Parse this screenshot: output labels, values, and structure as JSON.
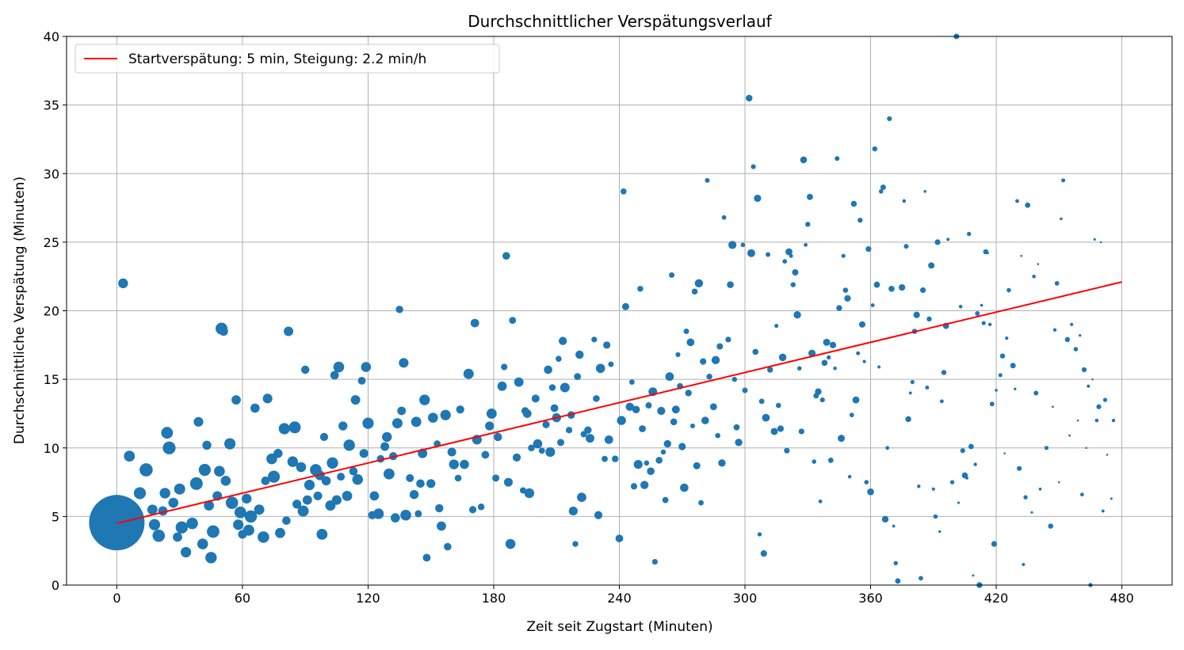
{
  "chart_data": {
    "type": "scatter",
    "title": "Durchschnittlicher Verspätungsverlauf",
    "xlabel": "Zeit seit Zugstart (Minuten)",
    "ylabel": "Durchschnittliche Verspätung (Minuten)",
    "xlim": [
      -24,
      504
    ],
    "ylim": [
      0,
      40
    ],
    "xticks": [
      0,
      60,
      120,
      180,
      240,
      300,
      360,
      420,
      480
    ],
    "yticks": [
      0,
      5,
      10,
      15,
      20,
      25,
      30,
      35,
      40
    ],
    "grid": true,
    "legend_position": "top-left",
    "colors": {
      "points": "#1f77b4",
      "fit_line": "#ff0000"
    },
    "fit_line": {
      "label": "Startverspätung: 5 min, Steigung: 2.2 min/h",
      "x": [
        0,
        480
      ],
      "y": [
        4.5,
        22.1
      ]
    },
    "large_point": {
      "x": 0,
      "y": 4.55
    },
    "points": [
      [
        3,
        22
      ],
      [
        6,
        9.4
      ],
      [
        11,
        6.7
      ],
      [
        14,
        8.4
      ],
      [
        17,
        5.5
      ],
      [
        18,
        4.4
      ],
      [
        20,
        3.6
      ],
      [
        22,
        5.4
      ],
      [
        23,
        6.7
      ],
      [
        24,
        11.1
      ],
      [
        25,
        10
      ],
      [
        27,
        6
      ],
      [
        30,
        7
      ],
      [
        31,
        4.2
      ],
      [
        29,
        3.5
      ],
      [
        33,
        2.4
      ],
      [
        36,
        4.5
      ],
      [
        38,
        7.4
      ],
      [
        39,
        11.9
      ],
      [
        41,
        3
      ],
      [
        42,
        8.4
      ],
      [
        43,
        10.2
      ],
      [
        44,
        5.8
      ],
      [
        45,
        2
      ],
      [
        46,
        3.9
      ],
      [
        48,
        6.5
      ],
      [
        49,
        8.3
      ],
      [
        50,
        18.7
      ],
      [
        51,
        18.5
      ],
      [
        52,
        7.6
      ],
      [
        54,
        10.3
      ],
      [
        55,
        6
      ],
      [
        57,
        13.5
      ],
      [
        58,
        4.4
      ],
      [
        59,
        5.3
      ],
      [
        60,
        3.7
      ],
      [
        62,
        6.3
      ],
      [
        63,
        4
      ],
      [
        64,
        5
      ],
      [
        66,
        12.9
      ],
      [
        68,
        5.5
      ],
      [
        70,
        3.5
      ],
      [
        71,
        7.6
      ],
      [
        72,
        13.6
      ],
      [
        74,
        9.2
      ],
      [
        75,
        7.9
      ],
      [
        77,
        9.6
      ],
      [
        78,
        3.8
      ],
      [
        80,
        11.4
      ],
      [
        81,
        4.7
      ],
      [
        82,
        18.5
      ],
      [
        84,
        9
      ],
      [
        85,
        11.5
      ],
      [
        86,
        5.9
      ],
      [
        88,
        8.6
      ],
      [
        89,
        5.4
      ],
      [
        90,
        15.7
      ],
      [
        91,
        6.2
      ],
      [
        92,
        7.3
      ],
      [
        95,
        8.4
      ],
      [
        96,
        6.5
      ],
      [
        97,
        8
      ],
      [
        98,
        3.7
      ],
      [
        99,
        10.8
      ],
      [
        100,
        7.6
      ],
      [
        102,
        5.8
      ],
      [
        103,
        8.9
      ],
      [
        104,
        15.3
      ],
      [
        105,
        6.2
      ],
      [
        106,
        15.9
      ],
      [
        107,
        7.9
      ],
      [
        108,
        11.6
      ],
      [
        110,
        6.5
      ],
      [
        111,
        10.2
      ],
      [
        113,
        8.3
      ],
      [
        114,
        13.5
      ],
      [
        115,
        7.7
      ],
      [
        117,
        14.9
      ],
      [
        118,
        9.6
      ],
      [
        119,
        15.9
      ],
      [
        120,
        11.8
      ],
      [
        122,
        5.1
      ],
      [
        123,
        6.5
      ],
      [
        125,
        5.2
      ],
      [
        126,
        9.2
      ],
      [
        128,
        10.1
      ],
      [
        129,
        10.8
      ],
      [
        130,
        8.1
      ],
      [
        132,
        9.4
      ],
      [
        133,
        4.9
      ],
      [
        134,
        11.8
      ],
      [
        135,
        20.1
      ],
      [
        136,
        12.7
      ],
      [
        137,
        16.2
      ],
      [
        138,
        5.1
      ],
      [
        140,
        7.8
      ],
      [
        142,
        6.6
      ],
      [
        143,
        11.9
      ],
      [
        144,
        5.2
      ],
      [
        145,
        7.4
      ],
      [
        146,
        9.6
      ],
      [
        147,
        13.5
      ],
      [
        148,
        2
      ],
      [
        150,
        7.4
      ],
      [
        151,
        12.2
      ],
      [
        153,
        10.3
      ],
      [
        154,
        5.6
      ],
      [
        155,
        4.3
      ],
      [
        157,
        12.4
      ],
      [
        158,
        2.8
      ],
      [
        160,
        9.7
      ],
      [
        161,
        8.8
      ],
      [
        163,
        7.8
      ],
      [
        164,
        12.8
      ],
      [
        166,
        8.8
      ],
      [
        168,
        15.4
      ],
      [
        170,
        5.5
      ],
      [
        171,
        19.1
      ],
      [
        172,
        10.6
      ],
      [
        174,
        5.7
      ],
      [
        176,
        9.5
      ],
      [
        178,
        11.6
      ],
      [
        179,
        12.5
      ],
      [
        181,
        7.8
      ],
      [
        182,
        10.8
      ],
      [
        184,
        14.5
      ],
      [
        185,
        15.9
      ],
      [
        186,
        24
      ],
      [
        187,
        7.5
      ],
      [
        188,
        3
      ],
      [
        189,
        19.3
      ],
      [
        191,
        9.3
      ],
      [
        192,
        14.8
      ],
      [
        194,
        6.9
      ],
      [
        195,
        12.7
      ],
      [
        196,
        12.5
      ],
      [
        197,
        6.7
      ],
      [
        198,
        10
      ],
      [
        200,
        13.6
      ],
      [
        201,
        10.3
      ],
      [
        203,
        9.8
      ],
      [
        205,
        11.7
      ],
      [
        206,
        15.7
      ],
      [
        207,
        9.7
      ],
      [
        208,
        14.4
      ],
      [
        209,
        12.9
      ],
      [
        210,
        12.2
      ],
      [
        211,
        16.5
      ],
      [
        212,
        10.4
      ],
      [
        213,
        17.8
      ],
      [
        214,
        14.4
      ],
      [
        216,
        11.3
      ],
      [
        217,
        12.4
      ],
      [
        218,
        5.4
      ],
      [
        219,
        3
      ],
      [
        220,
        15.2
      ],
      [
        221,
        16.8
      ],
      [
        222,
        6.4
      ],
      [
        223,
        11
      ],
      [
        225,
        11.3
      ],
      [
        226,
        10.7
      ],
      [
        228,
        17.9
      ],
      [
        229,
        13.6
      ],
      [
        230,
        5.1
      ],
      [
        231,
        15.8
      ],
      [
        233,
        9.2
      ],
      [
        234,
        17.5
      ],
      [
        235,
        10.6
      ],
      [
        236,
        16.1
      ],
      [
        238,
        9.2
      ],
      [
        240,
        3.4
      ],
      [
        241,
        12
      ],
      [
        242,
        28.7
      ],
      [
        243,
        20.3
      ],
      [
        245,
        13
      ],
      [
        246,
        14.8
      ],
      [
        247,
        7.2
      ],
      [
        248,
        12.8
      ],
      [
        249,
        8.8
      ],
      [
        250,
        21.6
      ],
      [
        251,
        11.4
      ],
      [
        252,
        7.3
      ],
      [
        253,
        8.9
      ],
      [
        254,
        13.1
      ],
      [
        255,
        8.3
      ],
      [
        256,
        14.1
      ],
      [
        257,
        1.7
      ],
      [
        259,
        9.1
      ],
      [
        260,
        12.7
      ],
      [
        261,
        9.7
      ],
      [
        262,
        6.2
      ],
      [
        263,
        10.3
      ],
      [
        264,
        15.2
      ],
      [
        265,
        22.6
      ],
      [
        266,
        11.9
      ],
      [
        267,
        12.8
      ],
      [
        268,
        16.8
      ],
      [
        269,
        14.5
      ],
      [
        270,
        10.1
      ],
      [
        271,
        7.1
      ],
      [
        272,
        18.5
      ],
      [
        273,
        14
      ],
      [
        274,
        17.7
      ],
      [
        275,
        11.6
      ],
      [
        276,
        21.4
      ],
      [
        277,
        8.7
      ],
      [
        278,
        22
      ],
      [
        279,
        6
      ],
      [
        280,
        16.3
      ],
      [
        281,
        12
      ],
      [
        282,
        29.5
      ],
      [
        283,
        15.2
      ],
      [
        285,
        13
      ],
      [
        286,
        16.4
      ],
      [
        287,
        10.9
      ],
      [
        288,
        17.4
      ],
      [
        289,
        8.9
      ],
      [
        290,
        26.8
      ],
      [
        292,
        17.9
      ],
      [
        293,
        21.9
      ],
      [
        294,
        24.8
      ],
      [
        295,
        15
      ],
      [
        296,
        11.5
      ],
      [
        297,
        10.4
      ],
      [
        299,
        24.8
      ],
      [
        300,
        14.2
      ],
      [
        302,
        35.5
      ],
      [
        303,
        24.2
      ],
      [
        304,
        30.5
      ],
      [
        305,
        17
      ],
      [
        306,
        28.2
      ],
      [
        307,
        3.7
      ],
      [
        308,
        13.4
      ],
      [
        309,
        2.3
      ],
      [
        310,
        12.2
      ],
      [
        311,
        24.1
      ],
      [
        312,
        15.7
      ],
      [
        314,
        11.2
      ],
      [
        315,
        18.9
      ],
      [
        316,
        13.1
      ],
      [
        317,
        11.4
      ],
      [
        318,
        16.6
      ],
      [
        319,
        23.6
      ],
      [
        320,
        9.8
      ],
      [
        321,
        24.3
      ],
      [
        322,
        24
      ],
      [
        323,
        21.9
      ],
      [
        324,
        22.8
      ],
      [
        325,
        19.7
      ],
      [
        326,
        15.8
      ],
      [
        327,
        11.2
      ],
      [
        328,
        31
      ],
      [
        329,
        24.8
      ],
      [
        330,
        26.3
      ],
      [
        331,
        28.3
      ],
      [
        332,
        16.9
      ],
      [
        333,
        9
      ],
      [
        334,
        13.8
      ],
      [
        335,
        14.1
      ],
      [
        336,
        6.1
      ],
      [
        337,
        13.5
      ],
      [
        338,
        16.2
      ],
      [
        339,
        17.7
      ],
      [
        340,
        16.6
      ],
      [
        341,
        9.1
      ],
      [
        342,
        17.5
      ],
      [
        343,
        15.8
      ],
      [
        344,
        31.1
      ],
      [
        345,
        20.2
      ],
      [
        346,
        10.7
      ],
      [
        347,
        24
      ],
      [
        348,
        21.5
      ],
      [
        349,
        20.9
      ],
      [
        350,
        7.9
      ],
      [
        351,
        12.4
      ],
      [
        352,
        27.8
      ],
      [
        353,
        13.5
      ],
      [
        354,
        16.9
      ],
      [
        355,
        26.6
      ],
      [
        356,
        19
      ],
      [
        357,
        16.3
      ],
      [
        358,
        7.5
      ],
      [
        359,
        24.5
      ],
      [
        360,
        6.8
      ],
      [
        361,
        20.4
      ],
      [
        362,
        31.8
      ],
      [
        363,
        21.9
      ],
      [
        364,
        15.9
      ],
      [
        365,
        28.7
      ],
      [
        366,
        29
      ],
      [
        367,
        4.8
      ],
      [
        368,
        10
      ],
      [
        369,
        34
      ],
      [
        370,
        21.6
      ],
      [
        371,
        4.3
      ],
      [
        372,
        1.6
      ],
      [
        373,
        0.3
      ],
      [
        375,
        21.7
      ],
      [
        376,
        28
      ],
      [
        377,
        24.7
      ],
      [
        378,
        12.1
      ],
      [
        379,
        14
      ],
      [
        380,
        14.8
      ],
      [
        381,
        18.5
      ],
      [
        382,
        19.7
      ],
      [
        383,
        7.2
      ],
      [
        384,
        0.5
      ],
      [
        385,
        21.5
      ],
      [
        386,
        28.7
      ],
      [
        387,
        14.4
      ],
      [
        388,
        19.4
      ],
      [
        389,
        23.3
      ],
      [
        390,
        7
      ],
      [
        391,
        5
      ],
      [
        392,
        25
      ],
      [
        393,
        3.9
      ],
      [
        394,
        13.4
      ],
      [
        395,
        15.5
      ],
      [
        396,
        18.9
      ],
      [
        397,
        25.2
      ],
      [
        399,
        7.5
      ],
      [
        401,
        40
      ],
      [
        402,
        6
      ],
      [
        403,
        20.3
      ],
      [
        404,
        9.8
      ],
      [
        405,
        8
      ],
      [
        406,
        7.8
      ],
      [
        407,
        25.6
      ],
      [
        408,
        10.1
      ],
      [
        409,
        0.7
      ],
      [
        410,
        8.8
      ],
      [
        411,
        19.8
      ],
      [
        412,
        0
      ],
      [
        413,
        20.4
      ],
      [
        414,
        19.1
      ],
      [
        415,
        24.3
      ],
      [
        416,
        24.2
      ],
      [
        417,
        19
      ],
      [
        418,
        13.2
      ],
      [
        419,
        3
      ],
      [
        420,
        14.2
      ],
      [
        422,
        15.3
      ],
      [
        423,
        16.7
      ],
      [
        424,
        9.6
      ],
      [
        425,
        18
      ],
      [
        426,
        21.5
      ],
      [
        428,
        16
      ],
      [
        429,
        14.3
      ],
      [
        430,
        28
      ],
      [
        431,
        8.5
      ],
      [
        432,
        24
      ],
      [
        433,
        1.5
      ],
      [
        434,
        6.4
      ],
      [
        435,
        27.7
      ],
      [
        437,
        5.3
      ],
      [
        438,
        22.5
      ],
      [
        439,
        14
      ],
      [
        440,
        23.4
      ],
      [
        441,
        7
      ],
      [
        444,
        10
      ],
      [
        446,
        4.3
      ],
      [
        447,
        13
      ],
      [
        448,
        18.6
      ],
      [
        449,
        22
      ],
      [
        450,
        7.5
      ],
      [
        451,
        26.7
      ],
      [
        452,
        29.5
      ],
      [
        454,
        17.9
      ],
      [
        455,
        10.9
      ],
      [
        456,
        19
      ],
      [
        458,
        17.2
      ],
      [
        459,
        12
      ],
      [
        460,
        18.2
      ],
      [
        461,
        6.6
      ],
      [
        462,
        15.7
      ],
      [
        463,
        10
      ],
      [
        464,
        14.5
      ],
      [
        465,
        0
      ],
      [
        466,
        15
      ],
      [
        467,
        25.2
      ],
      [
        468,
        12
      ],
      [
        469,
        13
      ],
      [
        470,
        25
      ],
      [
        471,
        5.4
      ],
      [
        472,
        13.5
      ],
      [
        473,
        9.5
      ],
      [
        475,
        6.3
      ],
      [
        476,
        12
      ]
    ]
  }
}
